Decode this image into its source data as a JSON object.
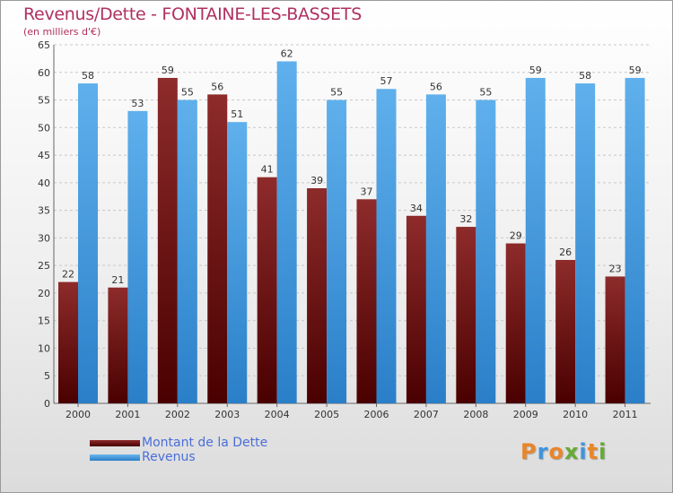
{
  "chart_data": {
    "type": "bar",
    "title": "Revenus/Dette - FONTAINE-LES-BASSETS",
    "subtitle": "(en milliers d'€)",
    "categories": [
      "2000",
      "2001",
      "2002",
      "2003",
      "2004",
      "2005",
      "2006",
      "2007",
      "2008",
      "2009",
      "2010",
      "2011"
    ],
    "series": [
      {
        "name": "Montant de la Dette",
        "values": [
          22,
          21,
          59,
          56,
          41,
          39,
          37,
          34,
          32,
          29,
          26,
          23
        ],
        "color": "#7a1a1a"
      },
      {
        "name": "Revenus",
        "values": [
          58,
          53,
          55,
          51,
          62,
          55,
          57,
          56,
          55,
          59,
          58,
          59
        ],
        "color": "#3f95dd"
      }
    ],
    "ylim": [
      0,
      65
    ],
    "yticks": [
      0,
      5,
      10,
      15,
      20,
      25,
      30,
      35,
      40,
      45,
      50,
      55,
      60,
      65
    ],
    "grid": true,
    "legend_position": "bottom-left"
  },
  "brand": {
    "logo_text": "Proxiti",
    "logo_colors": [
      "#e8862a",
      "#3f95dd",
      "#e8862a",
      "#66aa33",
      "#3f95dd",
      "#e8862a",
      "#66aa33"
    ]
  }
}
